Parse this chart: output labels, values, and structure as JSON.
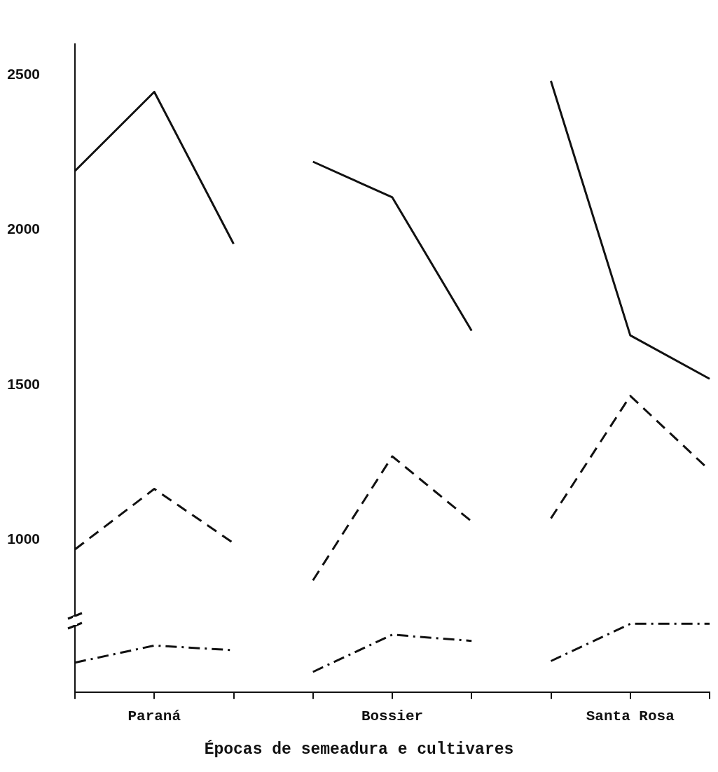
{
  "chart_data": {
    "type": "line",
    "xlabel": "Épocas de semeadura e cultivares",
    "categories": [
      null,
      "Paraná",
      null,
      null,
      "Bossier",
      null,
      null,
      "Santa Rosa",
      null
    ],
    "series": [
      {
        "color": "#111111",
        "line_style": "solid",
        "values": [
          2190,
          2445,
          1955,
          null,
          null,
          null,
          null,
          null,
          null
        ]
      },
      {
        "color": "#111111",
        "line_style": "solid",
        "values": [
          null,
          null,
          null,
          2220,
          2105,
          1675,
          null,
          null,
          null
        ]
      },
      {
        "color": "#111111",
        "line_style": "solid",
        "values": [
          null,
          null,
          null,
          null,
          null,
          null,
          2480,
          1660,
          1520
        ]
      },
      {
        "color": "#111111",
        "line_style": "dashed",
        "values": [
          970,
          1165,
          990,
          null,
          null,
          null,
          null,
          null,
          null
        ]
      },
      {
        "color": "#111111",
        "line_style": "dashed",
        "values": [
          null,
          null,
          null,
          870,
          1270,
          1060,
          null,
          null,
          null
        ]
      },
      {
        "color": "#111111",
        "line_style": "dashed",
        "values": [
          null,
          null,
          null,
          null,
          null,
          null,
          1070,
          1465,
          1225
        ]
      },
      {
        "color": "#111111",
        "line_style": "dashdot",
        "values": [
          605,
          660,
          645,
          null,
          null,
          null,
          null,
          null,
          null
        ]
      },
      {
        "color": "#111111",
        "line_style": "dashdot",
        "values": [
          null,
          null,
          null,
          575,
          695,
          675,
          null,
          null,
          null
        ]
      },
      {
        "color": "#111111",
        "line_style": "dashdot",
        "values": [
          null,
          null,
          null,
          null,
          null,
          null,
          610,
          730,
          730
        ]
      }
    ],
    "ylim": [
      510,
      2600
    ],
    "yticks": [
      1000,
      1500,
      2000,
      2500
    ],
    "grid": false,
    "legend": false,
    "marker": "none"
  }
}
